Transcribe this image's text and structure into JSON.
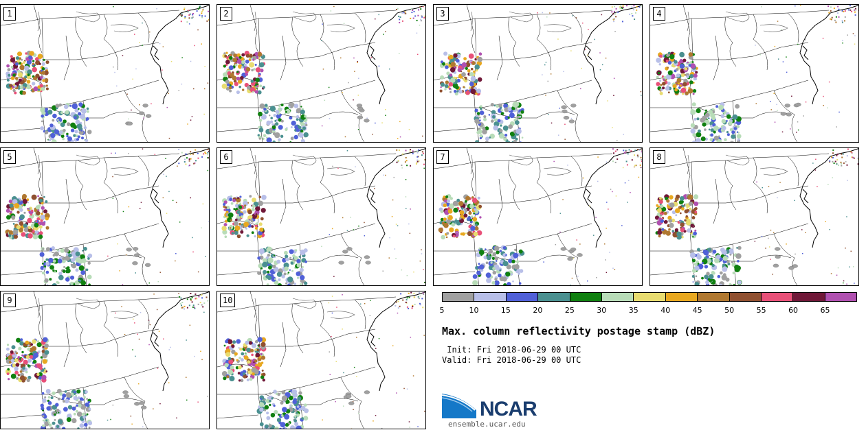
{
  "panels": [
    {
      "label": "1"
    },
    {
      "label": "2"
    },
    {
      "label": "3"
    },
    {
      "label": "4"
    },
    {
      "label": "5"
    },
    {
      "label": "6"
    },
    {
      "label": "7"
    },
    {
      "label": "8"
    },
    {
      "label": "9"
    },
    {
      "label": "10"
    }
  ],
  "colorbar": {
    "colors": [
      "#a0a0a0",
      "#b8bfe8",
      "#5060d8",
      "#4a9090",
      "#108010",
      "#b8dcb8",
      "#e8dc70",
      "#e8a820",
      "#b07830",
      "#905030",
      "#e85078",
      "#701838",
      "#b050b0"
    ],
    "ticks": [
      "5",
      "10",
      "15",
      "20",
      "25",
      "30",
      "35",
      "40",
      "45",
      "50",
      "55",
      "60",
      "65"
    ]
  },
  "title": "Max. column reflectivity postage stamp (dBZ)",
  "init_line": " Init: Fri 2018-06-29 00 UTC",
  "valid_line": "Valid: Fri 2018-06-29 00 UTC",
  "logo": {
    "text": "NCAR",
    "site": "ensemble.ucar.edu"
  }
}
